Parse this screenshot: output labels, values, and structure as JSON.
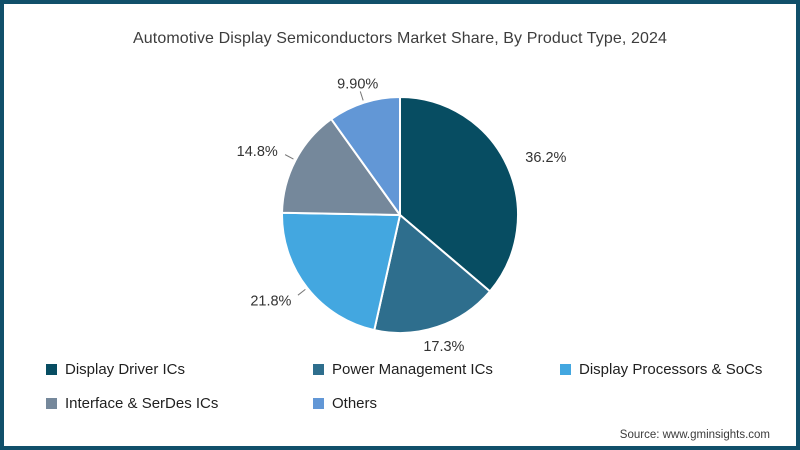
{
  "title": "Automotive Display Semiconductors Market Share, By Product Type, 2024",
  "source": "Source: www.gminsights.com",
  "frame": {
    "border_color": "#11506a",
    "background_color": "#ffffff"
  },
  "chart_data": {
    "type": "pie",
    "title": "Automotive Display Semiconductors Market Share, By Product Type, 2024",
    "start_angle_deg": 0,
    "direction": "clockwise",
    "legend_position": "bottom-left",
    "slice_border_color": "#ffffff",
    "slices": [
      {
        "label": "Display Driver ICs",
        "value": 36.2,
        "display": "36.2%",
        "color": "#074d62"
      },
      {
        "label": "Power Management ICs",
        "value": 17.3,
        "display": "17.3%",
        "color": "#2e6e8d"
      },
      {
        "label": "Display Processors & SoCs",
        "value": 21.8,
        "display": "21.8%",
        "color": "#43a7e0"
      },
      {
        "label": "Interface & SerDes ICs",
        "value": 14.8,
        "display": "14.8%",
        "color": "#75889b"
      },
      {
        "label": "Others",
        "value": 9.9,
        "display": "9.90%",
        "color": "#6297d6"
      }
    ]
  }
}
